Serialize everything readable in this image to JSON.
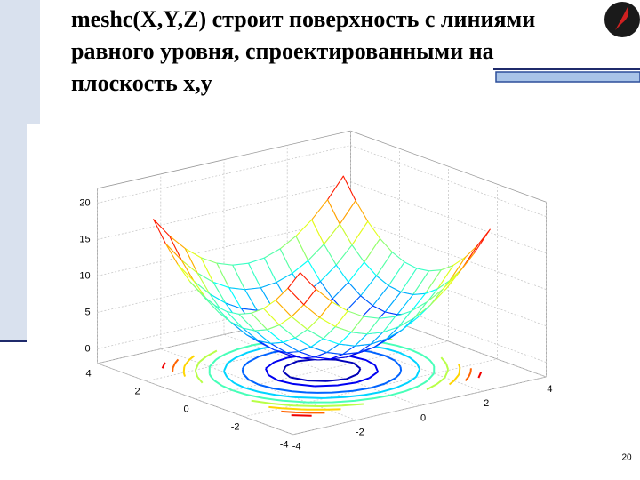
{
  "title_lines": [
    "meshc(X,Y,Z) строит поверхность с линиями",
    "равного уровня, спроектированными на",
    "плоскость  x,y"
  ],
  "page_number": "20",
  "chart_data": {
    "type": "meshc",
    "x": [
      -3,
      -2.5,
      -2,
      -1.5,
      -1,
      -0.5,
      0,
      0.5,
      1,
      1.5,
      2,
      2.5,
      3
    ],
    "y": [
      -3,
      -2.5,
      -2,
      -1.5,
      -1,
      -0.5,
      0,
      0.5,
      1,
      1.5,
      2,
      2.5,
      3
    ],
    "z": [
      [
        18,
        15.25,
        13,
        11.25,
        10,
        9.25,
        9,
        9.25,
        10,
        11.25,
        13,
        15.25,
        18
      ],
      [
        15.25,
        12.5,
        10.25,
        8.5,
        7.25,
        6.5,
        6.25,
        6.5,
        7.25,
        8.5,
        10.25,
        12.5,
        15.25
      ],
      [
        13,
        10.25,
        8,
        6.25,
        5,
        4.25,
        4,
        4.25,
        5,
        6.25,
        8,
        10.25,
        13
      ],
      [
        11.25,
        8.5,
        6.25,
        4.5,
        3.25,
        2.5,
        2.25,
        2.5,
        3.25,
        4.5,
        6.25,
        8.5,
        11.25
      ],
      [
        10,
        7.25,
        5,
        3.25,
        2,
        1.25,
        1,
        1.25,
        2,
        3.25,
        5,
        7.25,
        10
      ],
      [
        9.25,
        6.5,
        4.25,
        2.5,
        1.25,
        0.5,
        0.25,
        0.5,
        1.25,
        2.5,
        4.25,
        6.5,
        9.25
      ],
      [
        9,
        6.25,
        4,
        2.25,
        1,
        0.25,
        0,
        0.25,
        1,
        2.25,
        4,
        6.25,
        9
      ],
      [
        9.25,
        6.5,
        4.25,
        2.5,
        1.25,
        0.5,
        0.25,
        0.5,
        1.25,
        2.5,
        4.25,
        6.5,
        9.25
      ],
      [
        10,
        7.25,
        5,
        3.25,
        2,
        1.25,
        1,
        1.25,
        2,
        3.25,
        5,
        7.25,
        10
      ],
      [
        11.25,
        8.5,
        6.25,
        4.5,
        3.25,
        2.5,
        2.25,
        2.5,
        3.25,
        4.5,
        6.25,
        8.5,
        11.25
      ],
      [
        13,
        10.25,
        8,
        6.25,
        5,
        4.25,
        4,
        4.25,
        5,
        6.25,
        8,
        10.25,
        13
      ],
      [
        15.25,
        12.5,
        10.25,
        8.5,
        7.25,
        6.5,
        6.25,
        6.5,
        7.25,
        8.5,
        10.25,
        12.5,
        15.25
      ],
      [
        18,
        15.25,
        13,
        11.25,
        10,
        9.25,
        9,
        9.25,
        10,
        11.25,
        13,
        15.25,
        18
      ]
    ],
    "contour_levels": [
      1,
      2,
      4,
      6,
      8,
      10,
      12,
      14,
      16
    ],
    "xlim": [
      -4,
      4
    ],
    "ylim": [
      -4,
      4
    ],
    "zlim": [
      -2,
      22
    ],
    "xticks": [
      -4,
      -2,
      0,
      2,
      4
    ],
    "yticks": [
      -4,
      -2,
      0,
      2,
      4
    ],
    "zticks": [
      0,
      5,
      10,
      15,
      20
    ],
    "grid": true,
    "colormap": "jet"
  }
}
